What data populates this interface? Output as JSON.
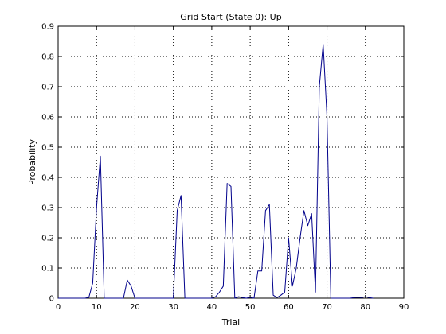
{
  "chart_data": {
    "type": "line",
    "title": "Grid Start (State 0): Up",
    "xlabel": "Trial",
    "ylabel": "Probability",
    "xlim": [
      0,
      90
    ],
    "ylim": [
      0,
      0.9
    ],
    "xticks": [
      0,
      10,
      20,
      30,
      40,
      50,
      60,
      70,
      80,
      90
    ],
    "yticks": [
      0,
      0.1,
      0.2,
      0.3,
      0.4,
      0.5,
      0.6,
      0.7,
      0.8,
      0.9
    ],
    "xtick_labels": [
      "0",
      "10",
      "20",
      "30",
      "40",
      "50",
      "60",
      "70",
      "80",
      "90"
    ],
    "ytick_labels": [
      "0",
      "0.1",
      "0.2",
      "0.3",
      "0.4",
      "0.5",
      "0.6",
      "0.7",
      "0.8",
      "0.9"
    ],
    "grid": true,
    "series": [
      {
        "color": "#00008b",
        "x": [
          0,
          1,
          2,
          3,
          4,
          5,
          6,
          7,
          8,
          9,
          10,
          11,
          12,
          13,
          14,
          15,
          16,
          17,
          18,
          19,
          20,
          21,
          22,
          23,
          24,
          25,
          26,
          27,
          28,
          29,
          30,
          31,
          32,
          33,
          34,
          35,
          36,
          37,
          38,
          39,
          40,
          41,
          42,
          43,
          44,
          45,
          46,
          47,
          48,
          49,
          50,
          51,
          52,
          53,
          54,
          55,
          56,
          57,
          58,
          59,
          60,
          61,
          62,
          63,
          64,
          65,
          66,
          67,
          68,
          69,
          70,
          71,
          72,
          73,
          74,
          75,
          76,
          77,
          78,
          79,
          80,
          81,
          82
        ],
        "y": [
          0,
          0,
          0,
          0,
          0,
          0,
          0,
          0,
          0.003,
          0.05,
          0.3,
          0.47,
          0,
          0,
          0,
          0,
          0,
          0,
          0.06,
          0.04,
          0,
          0,
          0,
          0,
          0,
          0,
          0,
          0,
          0,
          0,
          0,
          0.29,
          0.34,
          0,
          0,
          0,
          0,
          0,
          0,
          0,
          0,
          0.005,
          0.02,
          0.04,
          0.38,
          0.37,
          0,
          0.005,
          0.002,
          0,
          0.003,
          0,
          0.09,
          0.09,
          0.29,
          0.31,
          0.01,
          0.002,
          0.01,
          0.02,
          0.2,
          0.04,
          0.1,
          0.2,
          0.29,
          0.24,
          0.28,
          0.02,
          0.7,
          0.84,
          0.6,
          0,
          0,
          0,
          0,
          0,
          0,
          0.002,
          0.003,
          0.002,
          0.005,
          0.002,
          0
        ]
      }
    ]
  }
}
